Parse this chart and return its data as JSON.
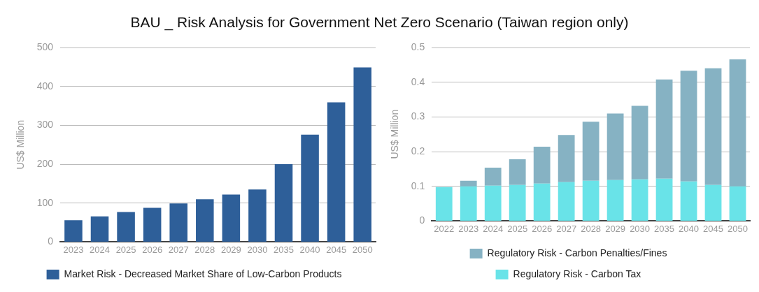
{
  "chart_data": [
    {
      "type": "bar",
      "title": "BAU _ Risk Analysis for Government Net Zero Scenario (Taiwan region only)",
      "ylabel": "US$ Million",
      "categories": [
        "2023",
        "2024",
        "2025",
        "2026",
        "2027",
        "2028",
        "2029",
        "2030",
        "2035",
        "2040",
        "2045",
        "2050"
      ],
      "series": [
        {
          "name": "Market Risk - Decreased Market Share of Low-Carbon Products",
          "color": "#2e5f99",
          "values": [
            56,
            66,
            77,
            88,
            99,
            110,
            122,
            135,
            200,
            276,
            359,
            449
          ]
        }
      ],
      "ylim": [
        0,
        500
      ],
      "yticks": [
        0,
        100,
        200,
        300,
        400,
        500
      ],
      "grid": "y",
      "legend": "bottom"
    },
    {
      "type": "bar",
      "ylabel": "US$ Million",
      "categories": [
        "2022",
        "2023",
        "2024",
        "2025",
        "2026",
        "2027",
        "2028",
        "2029",
        "2030",
        "2035",
        "2040",
        "2045",
        "2050"
      ],
      "stacked": true,
      "series": [
        {
          "name": "Regulatory Risk - Carbon Tax",
          "color": "#69e3e8",
          "values": [
            0.098,
            0.1,
            0.102,
            0.104,
            0.108,
            0.112,
            0.116,
            0.118,
            0.12,
            0.122,
            0.114,
            0.104,
            0.1
          ]
        },
        {
          "name": "Regulatory Risk - Carbon Penalties/Fines",
          "color": "#86b2c3",
          "values": [
            0,
            0.016,
            0.052,
            0.074,
            0.106,
            0.136,
            0.17,
            0.192,
            0.212,
            0.286,
            0.319,
            0.336,
            0.366
          ]
        }
      ],
      "ylim": [
        0,
        0.5
      ],
      "yticks": [
        0,
        0.1,
        0.2,
        0.3,
        0.4,
        0.5
      ],
      "grid": "y",
      "legend": "bottom"
    }
  ]
}
